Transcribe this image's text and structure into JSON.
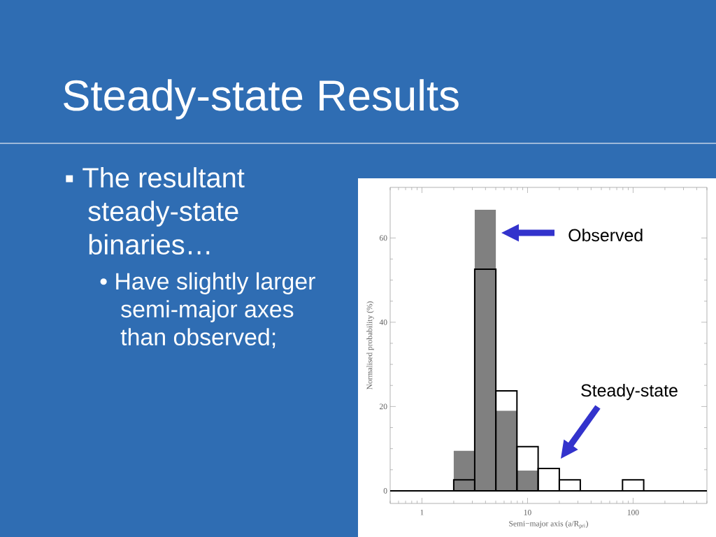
{
  "chart_data": {
    "type": "histogram",
    "title": "Steady-state Results",
    "annotations": [
      "▪ The resultant steady-state binaries…",
      "• Have slightly larger semi-major axes than observed;",
      "Observed",
      "Steady-state"
    ],
    "xlabel": "Semi−major axis (a/R$_{pri}$)",
    "ylabel": "Normalised probability (%)",
    "log": "x",
    "xlim": [
      0.5,
      500
    ],
    "xticks": [
      1,
      10,
      100
    ],
    "ylim": [
      -3,
      72
    ],
    "yticks": [
      0,
      20,
      40,
      60
    ],
    "bins": [
      2,
      3.16,
      5.01,
      7.94,
      12.6,
      20,
      31.6,
      79.4,
      126
    ],
    "series": [
      {
        "color": "#808080",
        "values": [
          9.5,
          66.7,
          19.0,
          4.8,
          0,
          0,
          0,
          0
        ]
      },
      {
        "color": "#000000",
        "values": [
          2.6,
          52.6,
          23.7,
          10.5,
          5.3,
          2.6,
          0,
          2.6
        ]
      }
    ],
    "ref_lines": [
      {
        "axis": "y",
        "value": 0,
        "color": "#000000"
      }
    ]
  }
}
